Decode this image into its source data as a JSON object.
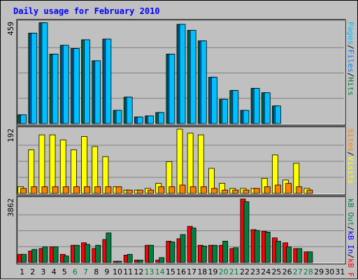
{
  "chart_data": {
    "type": "bar",
    "title": "Daily usage for February 2010",
    "colors": {
      "background": "#c0c0c0",
      "title": "#0000ff",
      "hits": "#008040",
      "files": "#0080ff",
      "pages": "#00c0ff",
      "visits": "#ffff00",
      "sites": "#ff8000",
      "kb_f": "#ff0000",
      "kb_in": "#0000ff",
      "kb_out": "#008040",
      "weekend_label": "#008040",
      "weekday_label": "#000000"
    },
    "days": [
      "1",
      "2",
      "3",
      "4",
      "5",
      "6",
      "7",
      "8",
      "9",
      "10",
      "11",
      "12",
      "13",
      "14",
      "15",
      "16",
      "17",
      "18",
      "19",
      "20",
      "21",
      "22",
      "23",
      "24",
      "25",
      "26",
      "27",
      "28",
      "29",
      "30",
      "31"
    ],
    "weekend_days": [
      "6",
      "7",
      "13",
      "14",
      "20",
      "21",
      "27",
      "28"
    ],
    "panels": [
      {
        "id": "hits-files-pages",
        "max_label": "459",
        "ymax": 459,
        "legend": [
          {
            "text": "Hits",
            "color": "#008040"
          },
          {
            "text": "/",
            "color": "#000000"
          },
          {
            "text": "Files",
            "color": "#0080ff"
          },
          {
            "text": "/",
            "color": "#000000"
          },
          {
            "text": "Pages",
            "color": "#00c0ff"
          }
        ],
        "series": [
          {
            "name": "Hits",
            "color": "#008040",
            "values": [
              40,
              410,
              457,
              315,
              355,
              340,
              380,
              285,
              383,
              60,
              120,
              30,
              35,
              50,
              315,
              450,
              423,
              375,
              210,
              110,
              150,
              60,
              160,
              140,
              80,
              0,
              0,
              0,
              0,
              0,
              0
            ]
          },
          {
            "name": "Files",
            "color": "#0080ff",
            "values": [
              40,
              410,
              457,
              315,
              355,
              340,
              380,
              285,
              383,
              60,
              120,
              30,
              35,
              50,
              315,
              450,
              423,
              375,
              210,
              110,
              150,
              60,
              160,
              140,
              80,
              0,
              0,
              0,
              0,
              0,
              0
            ]
          },
          {
            "name": "Pages",
            "color": "#00c0ff",
            "values": [
              40,
              410,
              457,
              315,
              355,
              340,
              380,
              285,
              383,
              60,
              120,
              30,
              35,
              50,
              315,
              450,
              423,
              375,
              210,
              110,
              150,
              60,
              160,
              140,
              80,
              0,
              0,
              0,
              0,
              0,
              0
            ]
          }
        ]
      },
      {
        "id": "visits-sites",
        "max_label": "192",
        "ymax": 192,
        "legend": [
          {
            "text": "Visits",
            "color": "#ffff00"
          },
          {
            "text": "/",
            "color": "#000000"
          },
          {
            "text": "Sites",
            "color": "#ff8000"
          }
        ],
        "series": [
          {
            "name": "Visits",
            "color": "#ffff00",
            "values": [
              20,
              130,
              175,
              175,
              160,
              130,
              170,
              140,
              110,
              20,
              10,
              10,
              15,
              30,
              95,
              192,
              180,
              175,
              75,
              30,
              15,
              15,
              15,
              45,
              115,
              40,
              90,
              15,
              0,
              0,
              0
            ]
          },
          {
            "name": "Sites",
            "color": "#ff8000",
            "values": [
              15,
              20,
              20,
              20,
              20,
              20,
              20,
              20,
              20,
              20,
              10,
              10,
              10,
              20,
              20,
              25,
              20,
              20,
              15,
              10,
              10,
              10,
              15,
              20,
              25,
              30,
              20,
              10,
              0,
              0,
              0
            ]
          }
        ]
      },
      {
        "id": "kbf-kbin-kbout",
        "max_label": "3862",
        "ymax": 3862,
        "legend": [
          {
            "text": "kB F",
            "color": "#ff0000"
          },
          {
            "text": "/",
            "color": "#000000"
          },
          {
            "text": "kB In",
            "color": "#0000ff"
          },
          {
            "text": "/",
            "color": "#000000"
          },
          {
            "text": "kB Out",
            "color": "#008040"
          }
        ],
        "series": [
          {
            "name": "kB F",
            "color": "#ff0000",
            "values": [
              500,
              700,
              850,
              950,
              500,
              1050,
              1200,
              850,
              1400,
              80,
              450,
              150,
              1050,
              150,
              1300,
              1450,
              2200,
              1050,
              1050,
              1050,
              850,
              3862,
              2000,
              1900,
              1500,
              1200,
              850,
              650,
              0,
              0,
              0
            ]
          },
          {
            "name": "kB In",
            "color": "#0000ff",
            "values": [
              0,
              0,
              0,
              0,
              0,
              0,
              0,
              0,
              0,
              0,
              0,
              0,
              0,
              0,
              0,
              0,
              0,
              0,
              0,
              0,
              0,
              0,
              0,
              0,
              0,
              0,
              0,
              0,
              0,
              0,
              0
            ]
          },
          {
            "name": "kB Out",
            "color": "#008040",
            "values": [
              500,
              800,
              950,
              950,
              400,
              1050,
              1100,
              1050,
              1800,
              80,
              500,
              150,
              1050,
              300,
              1250,
              1700,
              2100,
              1000,
              1050,
              1300,
              900,
              3700,
              1950,
              1850,
              1300,
              950,
              850,
              650,
              0,
              0,
              0
            ]
          }
        ]
      }
    ]
  }
}
